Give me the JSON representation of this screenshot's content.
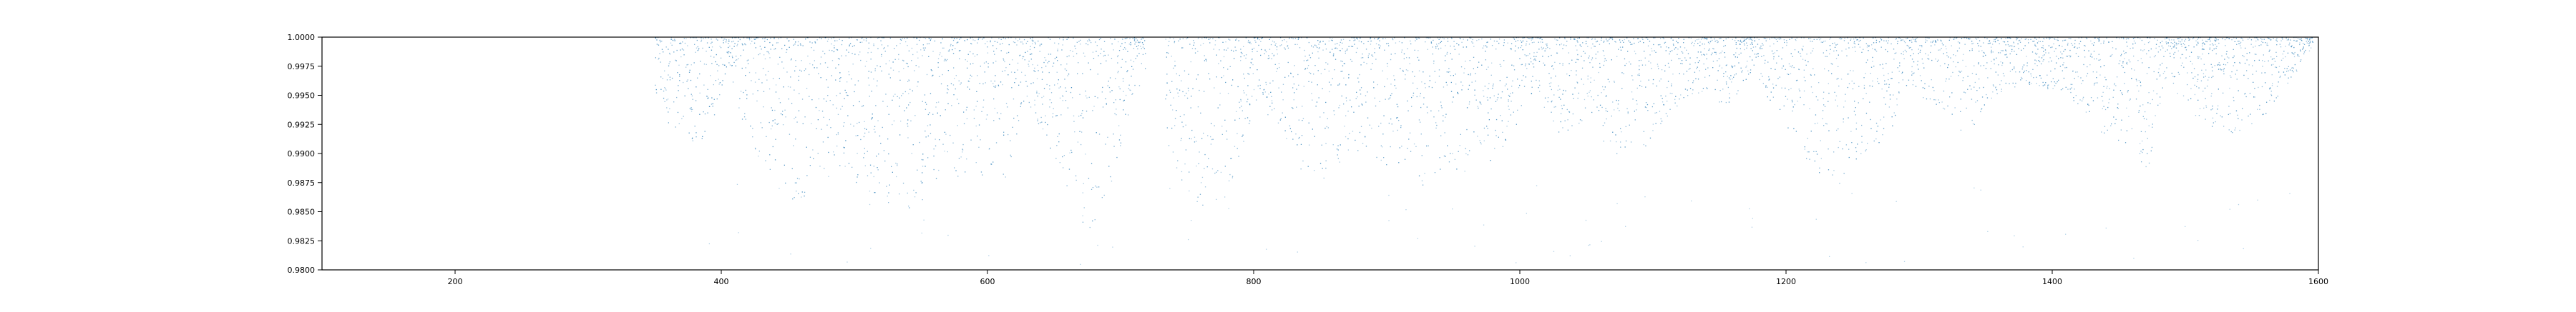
{
  "chart_data": {
    "type": "scatter",
    "title": "",
    "xlabel": "",
    "ylabel": "",
    "xlim": [
      100,
      1600
    ],
    "ylim": [
      0.98,
      1.0
    ],
    "grid": false,
    "x_ticks": [
      200,
      400,
      600,
      800,
      1000,
      1200,
      1400,
      1600
    ],
    "x_tick_labels": [
      "200",
      "400",
      "600",
      "800",
      "1000",
      "1200",
      "1400",
      "1600"
    ],
    "y_ticks": [
      0.98,
      0.9825,
      0.985,
      0.9875,
      0.99,
      0.9925,
      0.995,
      0.9975,
      1.0
    ],
    "y_tick_labels": [
      "0.9800",
      "0.9825",
      "0.9850",
      "0.9875",
      "0.9900",
      "0.9925",
      "0.9950",
      "0.9975",
      "1.0000"
    ],
    "series": [
      {
        "color": "#1f77b4",
        "marker": "point",
        "x_range": [
          350,
          1595
        ],
        "x_gap": [
          718,
          733
        ],
        "lower_envelope": [
          [
            352,
            0.9952
          ],
          [
            362,
            0.9915
          ],
          [
            380,
            0.9905
          ],
          [
            395,
            0.9928
          ],
          [
            405,
            0.9975
          ],
          [
            420,
            0.9905
          ],
          [
            440,
            0.988
          ],
          [
            455,
            0.9858
          ],
          [
            470,
            0.987
          ],
          [
            490,
            0.9885
          ],
          [
            510,
            0.9865
          ],
          [
            525,
            0.9855
          ],
          [
            545,
            0.985
          ],
          [
            565,
            0.987
          ],
          [
            585,
            0.9885
          ],
          [
            600,
            0.988
          ],
          [
            615,
            0.9872
          ],
          [
            628,
            0.9945
          ],
          [
            645,
            0.9905
          ],
          [
            660,
            0.987
          ],
          [
            675,
            0.983
          ],
          [
            690,
            0.9865
          ],
          [
            705,
            0.993
          ],
          [
            717,
            0.997
          ],
          [
            735,
            0.99
          ],
          [
            755,
            0.9855
          ],
          [
            770,
            0.985
          ],
          [
            785,
            0.987
          ],
          [
            800,
            0.9945
          ],
          [
            815,
            0.9925
          ],
          [
            835,
            0.9885
          ],
          [
            855,
            0.9865
          ],
          [
            875,
            0.99
          ],
          [
            900,
            0.989
          ],
          [
            920,
            0.9865
          ],
          [
            945,
            0.989
          ],
          [
            965,
            0.988
          ],
          [
            990,
            0.991
          ],
          [
            1010,
            0.9955
          ],
          [
            1030,
            0.9915
          ],
          [
            1050,
            0.993
          ],
          [
            1075,
            0.989
          ],
          [
            1095,
            0.9905
          ],
          [
            1115,
            0.9935
          ],
          [
            1135,
            0.995
          ],
          [
            1155,
            0.994
          ],
          [
            1175,
            0.997
          ],
          [
            1195,
            0.9925
          ],
          [
            1215,
            0.9895
          ],
          [
            1235,
            0.9865
          ],
          [
            1255,
            0.9895
          ],
          [
            1275,
            0.9915
          ],
          [
            1295,
            0.9955
          ],
          [
            1315,
            0.9935
          ],
          [
            1335,
            0.9915
          ],
          [
            1355,
            0.9945
          ],
          [
            1375,
            0.996
          ],
          [
            1395,
            0.9955
          ],
          [
            1415,
            0.9945
          ],
          [
            1435,
            0.992
          ],
          [
            1455,
            0.9905
          ],
          [
            1470,
            0.988
          ],
          [
            1485,
            0.9965
          ],
          [
            1505,
            0.9935
          ],
          [
            1530,
            0.9915
          ],
          [
            1555,
            0.9925
          ],
          [
            1580,
            0.9965
          ],
          [
            1595,
            0.999
          ]
        ],
        "outlier_y_range": [
          0.9805,
          0.9875
        ]
      }
    ]
  }
}
